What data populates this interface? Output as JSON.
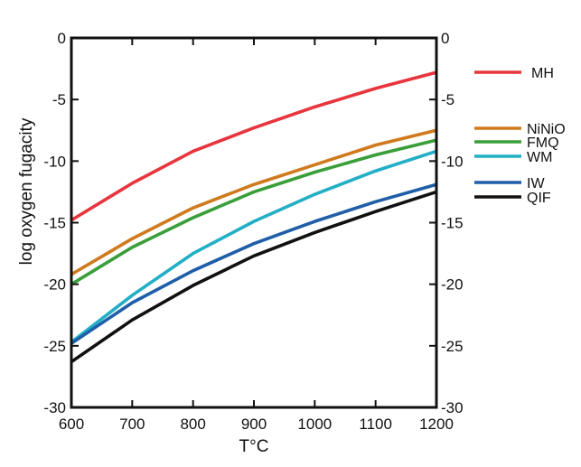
{
  "chart_data": {
    "type": "line",
    "title": "",
    "xlabel": "T°C",
    "ylabel": "log oxygen fugacity",
    "xlim": [
      600,
      1200
    ],
    "ylim": [
      -30,
      0
    ],
    "x": [
      600,
      700,
      800,
      900,
      1000,
      1100,
      1200
    ],
    "xticks": [
      "600",
      "700",
      "800",
      "900",
      "1000",
      "1100",
      "1200"
    ],
    "yticks": [
      "0",
      "-5",
      "-10",
      "-15",
      "-20",
      "-25",
      "-30"
    ],
    "y_axis_right_mirrored": true,
    "grid": false,
    "legend_placement": "right",
    "series": [
      {
        "name": "MH",
        "color": "#e8353d",
        "values": [
          -14.8,
          -11.8,
          -9.2,
          -7.3,
          -5.6,
          -4.1,
          -2.8
        ]
      },
      {
        "name": "NiNiO",
        "color": "#d07a1e",
        "values": [
          -19.2,
          -16.3,
          -13.8,
          -11.9,
          -10.3,
          -8.7,
          -7.5
        ]
      },
      {
        "name": "FMQ",
        "color": "#3a9e3a",
        "values": [
          -20.0,
          -17.0,
          -14.6,
          -12.5,
          -10.9,
          -9.5,
          -8.3
        ]
      },
      {
        "name": "WM",
        "color": "#22afc6",
        "values": [
          -24.7,
          -20.9,
          -17.5,
          -14.9,
          -12.7,
          -10.8,
          -9.2
        ]
      },
      {
        "name": "IW",
        "color": "#1f5ea8",
        "values": [
          -24.8,
          -21.5,
          -18.9,
          -16.7,
          -14.9,
          -13.3,
          -11.9
        ]
      },
      {
        "name": "QIF",
        "color": "#111111",
        "values": [
          -26.3,
          -22.9,
          -20.1,
          -17.7,
          -15.8,
          -14.1,
          -12.5
        ]
      }
    ]
  }
}
